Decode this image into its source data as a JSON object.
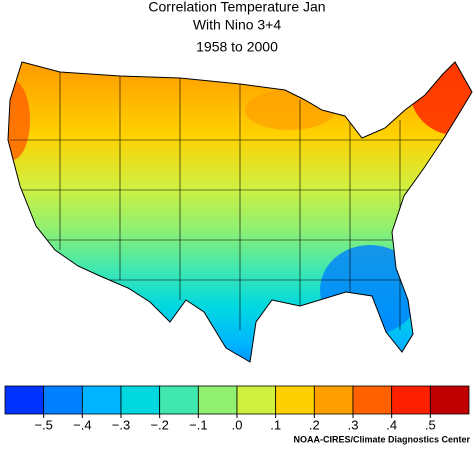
{
  "chart_data": {
    "type": "colormap",
    "title": "Correlation Temperature Jan",
    "subtitle": "With Nino 3+4",
    "period": "1958 to 2000",
    "credit": "NOAA-CIRES/Climate Diagnostics Center",
    "colorbar": {
      "colors": [
        "#0033ff",
        "#0080ff",
        "#00b4ff",
        "#00d8e0",
        "#40e8b0",
        "#90f070",
        "#d0f040",
        "#ffd000",
        "#ffa000",
        "#ff6000",
        "#ff2000",
        "#c00000"
      ],
      "lim": [
        -0.6,
        0.6
      ],
      "ticks": [
        {
          "value": -0.5,
          "label": "−.5"
        },
        {
          "value": -0.4,
          "label": "−.4"
        },
        {
          "value": -0.3,
          "label": "−.3"
        },
        {
          "value": -0.2,
          "label": "−.2"
        },
        {
          "value": -0.1,
          "label": "−.1"
        },
        {
          "value": 0,
          "label": ".0"
        },
        {
          "value": 0.1,
          "label": ".1"
        },
        {
          "value": 0.2,
          "label": ".2"
        },
        {
          "value": 0.3,
          "label": ".3"
        },
        {
          "value": 0.4,
          "label": ".4"
        },
        {
          "value": 0.5,
          "label": ".5"
        }
      ]
    }
  }
}
